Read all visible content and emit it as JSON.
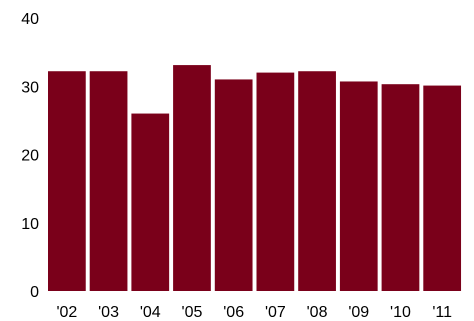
{
  "chart_data": {
    "type": "bar",
    "categories": [
      "'02",
      "'03",
      "'04",
      "'05",
      "'06",
      "'07",
      "'08",
      "'09",
      "'10",
      "'11"
    ],
    "values": [
      32.2,
      32.2,
      26.0,
      33.1,
      31.0,
      32.0,
      32.2,
      30.7,
      30.3,
      30.1
    ],
    "ylim": [
      0,
      40
    ],
    "yticks": [
      0,
      10,
      20,
      30,
      40
    ],
    "grid": false,
    "title": "",
    "xlabel": "",
    "ylabel": "",
    "bar_color": "#7a001a"
  }
}
